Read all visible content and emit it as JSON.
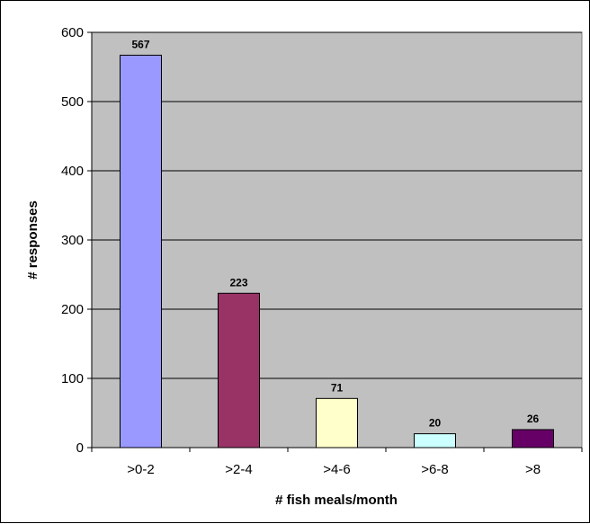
{
  "chart_data": {
    "type": "bar",
    "categories": [
      ">0-2",
      ">2-4",
      ">4-6",
      ">6-8",
      ">8"
    ],
    "values": [
      567,
      223,
      71,
      20,
      26
    ],
    "data_labels": [
      "567",
      "223",
      "71",
      "20",
      "26"
    ],
    "bar_colors": [
      "#9999ff",
      "#993366",
      "#ffffcc",
      "#ccffff",
      "#660066"
    ],
    "title": "",
    "xlabel": "# fish meals/month",
    "ylabel": "# responses",
    "ylim": [
      0,
      600
    ],
    "yticks": [
      0,
      100,
      200,
      300,
      400,
      500,
      600
    ],
    "ytick_labels": [
      "0",
      "100",
      "200",
      "300",
      "400",
      "500",
      "600"
    ],
    "grid": true,
    "plot_background": "#c0c0c0",
    "legend": "none"
  }
}
